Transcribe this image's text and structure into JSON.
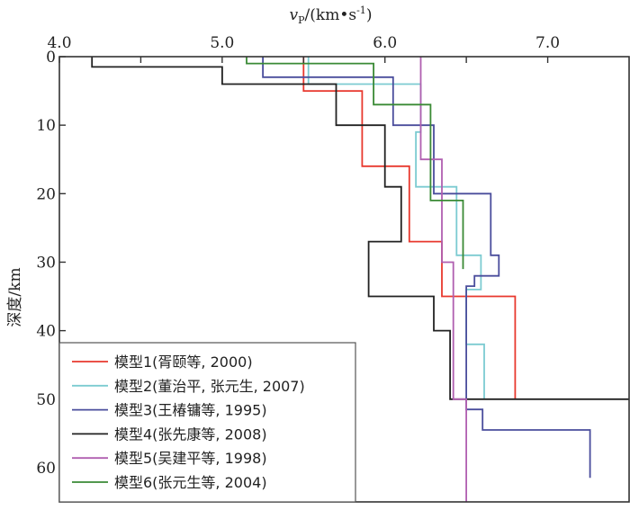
{
  "chart_data": {
    "type": "line",
    "title": "",
    "xlabel": "v_P/(km•s^-1)",
    "xlabel_parts": {
      "var": "v",
      "sub": "P",
      "unit": "/(km•s",
      "sup": "-1",
      "close": ")"
    },
    "ylabel": "深度/km",
    "xlim": [
      4.0,
      7.5
    ],
    "ylim": [
      0,
      65
    ],
    "y_inverted": true,
    "x_axis_position": "top",
    "x_ticks": [
      4.0,
      4.5,
      5.0,
      5.5,
      6.0,
      6.5,
      7.0
    ],
    "x_tick_labels": [
      {
        "value": 4.0,
        "label": "4.0"
      },
      {
        "value": 5.0,
        "label": "5.0"
      },
      {
        "value": 6.0,
        "label": "6.0"
      },
      {
        "value": 7.0,
        "label": "7.0"
      }
    ],
    "y_ticks": [
      0,
      10,
      20,
      30,
      40,
      50,
      60
    ],
    "y_tick_labels": [
      "0",
      "10",
      "20",
      "30",
      "40",
      "50",
      "60"
    ],
    "grid": false,
    "legend_position": "bottom-left",
    "series": [
      {
        "name": "模型1(胥颐等, 2000)",
        "color": "#e8382e",
        "step_profile": [
          {
            "v": 5.5,
            "top": 0,
            "bottom": 5
          },
          {
            "v": 5.86,
            "top": 5,
            "bottom": 16
          },
          {
            "v": 6.15,
            "top": 16,
            "bottom": 27
          },
          {
            "v": 6.35,
            "top": 27,
            "bottom": 35
          },
          {
            "v": 6.8,
            "top": 35,
            "bottom": 50
          }
        ]
      },
      {
        "name": "模型2(董治平, 张元生, 2007)",
        "color": "#7ccbd1",
        "step_profile": [
          {
            "v": 5.53,
            "top": 0,
            "bottom": 4
          },
          {
            "v": 6.22,
            "top": 4,
            "bottom": 11
          },
          {
            "v": 6.19,
            "top": 11,
            "bottom": 19
          },
          {
            "v": 6.44,
            "top": 19,
            "bottom": 29
          },
          {
            "v": 6.59,
            "top": 29,
            "bottom": 34
          },
          {
            "v": 6.5,
            "top": 34,
            "bottom": 42
          },
          {
            "v": 6.61,
            "top": 42,
            "bottom": 50
          }
        ]
      },
      {
        "name": "模型3(王椿镛等, 1995)",
        "color": "#4a4d9c",
        "step_profile": [
          {
            "v": 5.25,
            "top": 0,
            "bottom": 3
          },
          {
            "v": 6.05,
            "top": 3,
            "bottom": 10
          },
          {
            "v": 6.3,
            "top": 10,
            "bottom": 20
          },
          {
            "v": 6.65,
            "top": 20,
            "bottom": 29
          },
          {
            "v": 6.7,
            "top": 29,
            "bottom": 32
          },
          {
            "v": 6.55,
            "top": 32,
            "bottom": 33.5
          },
          {
            "v": 6.5,
            "top": 33.5,
            "bottom": 51.5
          },
          {
            "v": 6.6,
            "top": 51.5,
            "bottom": 54.5
          },
          {
            "v": 7.26,
            "top": 54.5,
            "bottom": 61.5
          }
        ]
      },
      {
        "name": "模型4(张先康等, 2008)",
        "color": "#222222",
        "step_profile": [
          {
            "v": 4.2,
            "top": 0,
            "bottom": 1.5
          },
          {
            "v": 5.0,
            "top": 1.5,
            "bottom": 4
          },
          {
            "v": 5.7,
            "top": 4,
            "bottom": 10
          },
          {
            "v": 6.0,
            "top": 10,
            "bottom": 19
          },
          {
            "v": 6.1,
            "top": 19,
            "bottom": 27
          },
          {
            "v": 5.9,
            "top": 27,
            "bottom": 35
          },
          {
            "v": 6.3,
            "top": 35,
            "bottom": 40
          },
          {
            "v": 6.4,
            "top": 40,
            "bottom": 50
          },
          {
            "v": 7.5,
            "top": 50,
            "bottom": 50
          }
        ]
      },
      {
        "name": "模型5(吴建平等, 1998)",
        "color": "#b05fb0",
        "step_profile": [
          {
            "v": 6.22,
            "top": 0,
            "bottom": 15
          },
          {
            "v": 6.35,
            "top": 15,
            "bottom": 30
          },
          {
            "v": 6.42,
            "top": 30,
            "bottom": 50
          },
          {
            "v": 6.5,
            "top": 50,
            "bottom": 65
          }
        ]
      },
      {
        "name": "模型6(张元生等, 2004)",
        "color": "#3a8a35",
        "step_profile": [
          {
            "v": 5.15,
            "top": 0,
            "bottom": 1
          },
          {
            "v": 5.93,
            "top": 1,
            "bottom": 7
          },
          {
            "v": 6.28,
            "top": 7,
            "bottom": 21
          },
          {
            "v": 6.48,
            "top": 21,
            "bottom": 31
          }
        ]
      }
    ]
  }
}
